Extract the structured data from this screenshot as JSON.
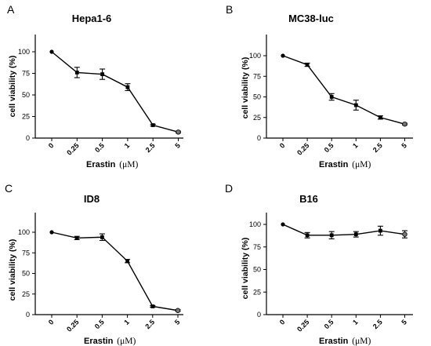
{
  "chart_data": [
    {
      "type": "line",
      "panel": "A",
      "title": "Hepa1-6",
      "ylabel": "cell viability (%)",
      "xlabel": "Erastin",
      "xunit": "(μM)",
      "categories": [
        "0",
        "0.25",
        "0.5",
        "1",
        "2.5",
        "5"
      ],
      "ylim": [
        0,
        125
      ],
      "yticks": [
        0,
        25,
        50,
        75,
        100
      ],
      "series": [
        {
          "values": [
            100,
            76,
            74,
            59,
            15,
            7
          ],
          "errors": [
            0,
            6,
            6,
            4,
            1,
            1
          ]
        }
      ]
    },
    {
      "type": "line",
      "panel": "B",
      "title": "MC38-luc",
      "ylabel": "cell viability (%)",
      "xlabel": "Erastin",
      "xunit": "(μM)",
      "categories": [
        "0",
        "0.25",
        "0.5",
        "1",
        "2.5",
        "5"
      ],
      "ylim": [
        0,
        125
      ],
      "yticks": [
        0,
        25,
        50,
        75,
        100
      ],
      "series": [
        {
          "values": [
            100,
            89,
            50,
            40,
            25,
            17
          ],
          "errors": [
            0,
            2,
            4,
            6,
            2,
            1
          ]
        }
      ]
    },
    {
      "type": "line",
      "panel": "C",
      "title": "ID8",
      "ylabel": "cell viability (%)",
      "xlabel": "Erastin",
      "xunit": "(μM)",
      "categories": [
        "0",
        "0.25",
        "0.5",
        "1",
        "2.5",
        "5"
      ],
      "ylim": [
        0,
        125
      ],
      "yticks": [
        0,
        25,
        50,
        75,
        100
      ],
      "series": [
        {
          "values": [
            100,
            93,
            94,
            65,
            10,
            5
          ],
          "errors": [
            0,
            2,
            4,
            2,
            1,
            1
          ]
        }
      ]
    },
    {
      "type": "line",
      "panel": "D",
      "title": "B16",
      "ylabel": "cell viability (%)",
      "xlabel": "Erastin",
      "xunit": "(μM)",
      "categories": [
        "0",
        "0.25",
        "0.5",
        "1",
        "2.5",
        "5"
      ],
      "ylim": [
        0,
        110
      ],
      "yticks": [
        0,
        25,
        50,
        75,
        100
      ],
      "series": [
        {
          "values": [
            100,
            88,
            88,
            89,
            93,
            89
          ],
          "errors": [
            0,
            3,
            4,
            3,
            5,
            4
          ]
        }
      ]
    }
  ]
}
